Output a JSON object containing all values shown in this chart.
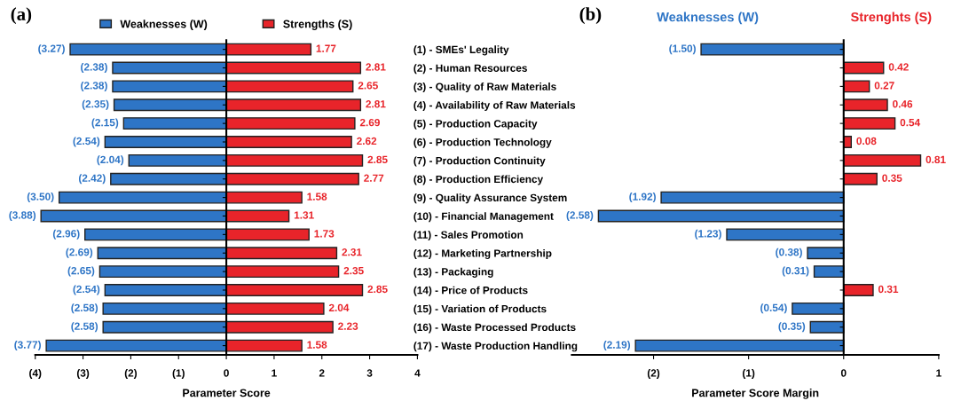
{
  "chart_data": [
    {
      "type": "bar",
      "title": "(a)",
      "orientation": "horizontal",
      "stacked": true,
      "xlabel": "Parameter Score",
      "categories": [
        null,
        null,
        null,
        null,
        null,
        null,
        null,
        null,
        null,
        null,
        null,
        null,
        null,
        null,
        null,
        null,
        null
      ],
      "series": [
        {
          "name": "Weaknesses (W)",
          "color": "#2e75c6",
          "values": [
            -3.27,
            -2.38,
            -2.38,
            -2.35,
            -2.15,
            -2.54,
            -2.04,
            -2.42,
            -3.5,
            -3.88,
            -2.96,
            -2.69,
            -2.65,
            -2.54,
            -2.58,
            -2.58,
            -3.77
          ],
          "value_labels": [
            "(3.27)",
            "(2.38)",
            "(2.38)",
            "(2.35)",
            "(2.15)",
            "(2.54)",
            "(2.04)",
            "(2.42)",
            "(3.50)",
            "(3.88)",
            "(2.96)",
            "(2.69)",
            "(2.65)",
            "(2.54)",
            "(2.58)",
            "(2.58)",
            "(3.77)"
          ]
        },
        {
          "name": "Strengths (S)",
          "color": "#e8242a",
          "values": [
            1.77,
            2.81,
            2.65,
            2.81,
            2.69,
            2.62,
            2.85,
            2.77,
            1.58,
            1.31,
            1.73,
            2.31,
            2.35,
            2.85,
            2.04,
            2.23,
            1.58
          ],
          "value_labels": [
            "1.77",
            "2.81",
            "2.65",
            "2.81",
            "2.69",
            "2.62",
            "2.85",
            "2.77",
            "1.58",
            "1.31",
            "1.73",
            "2.31",
            "2.35",
            "2.85",
            "2.04",
            "2.23",
            "1.58"
          ]
        }
      ],
      "xlim": [
        -4,
        4
      ],
      "xticks": [
        {
          "value": -4,
          "label": "(4)"
        },
        {
          "value": -3,
          "label": "(3)"
        },
        {
          "value": -2,
          "label": "(2)"
        },
        {
          "value": -1,
          "label": "(1)"
        },
        0,
        1,
        2,
        3,
        4
      ],
      "legend": "top"
    },
    {
      "type": "bar",
      "title": "(b)",
      "orientation": "horizontal",
      "stacked": true,
      "xlabel": "Parameter Score Margin",
      "categories": [
        "(1) - SMEs' Legality",
        "(2) - Human Resources",
        "(3) - Quality of Raw Materials",
        "(4) - Availability of Raw Materials",
        "(5) - Production Capacity",
        "(6) - Production Technology",
        "(7) - Production Continuity",
        "(8) - Production Efficiency",
        "(9) - Quality Assurance System",
        "(10) - Financial Management",
        "(11) - Sales Promotion",
        "(12) - Marketing Partnership",
        "(13) - Packaging",
        "(14) - Price of Products",
        "(15) - Variation of Products",
        "(16) - Waste Processed Products",
        "(17) - Waste Production Handling"
      ],
      "series": [
        {
          "name": "Weaknesses (W)",
          "color": "#2e75c6",
          "values": [
            -1.5,
            null,
            null,
            null,
            null,
            null,
            null,
            null,
            -1.92,
            -2.58,
            -1.23,
            -0.38,
            -0.31,
            null,
            -0.54,
            -0.35,
            -2.19
          ],
          "value_labels": [
            "(1.50)",
            null,
            null,
            null,
            null,
            null,
            null,
            null,
            "(1.92)",
            "(2.58)",
            "(1.23)",
            "(0.38)",
            "(0.31)",
            null,
            "(0.54)",
            "(0.35)",
            "(2.19)"
          ]
        },
        {
          "name": "Strenghts (S)",
          "color": "#e8242a",
          "values": [
            null,
            0.42,
            0.27,
            0.46,
            0.54,
            0.08,
            0.81,
            0.35,
            null,
            null,
            null,
            null,
            null,
            0.31,
            null,
            null,
            null
          ],
          "value_labels": [
            null,
            "0.42",
            "0.27",
            "0.46",
            "0.54",
            "0.08",
            "0.81",
            "0.35",
            null,
            null,
            null,
            null,
            null,
            "0.31",
            null,
            null,
            null
          ]
        }
      ],
      "xlim": [
        -2.86,
        1
      ],
      "xticks": [
        {
          "value": -2,
          "label": "(2)"
        },
        {
          "value": -1,
          "label": "(1)"
        },
        0,
        1
      ]
    }
  ]
}
